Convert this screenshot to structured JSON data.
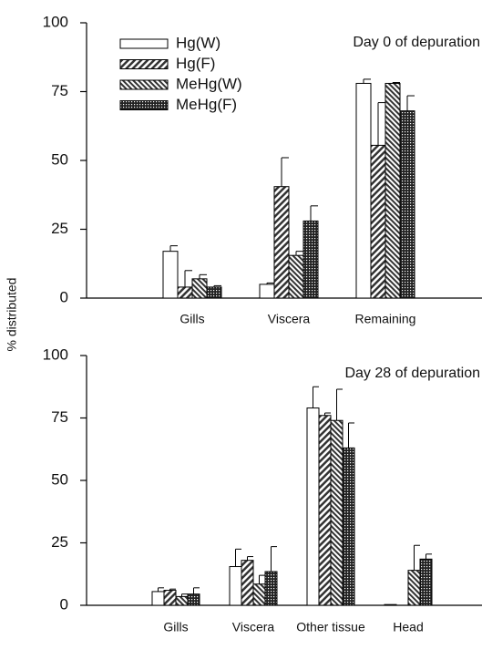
{
  "chart_data": [
    {
      "type": "bar",
      "ylabel": "% distributed",
      "title": "Day 0 of depuration",
      "categories": [
        "Gills",
        "Viscera",
        "Remaining"
      ],
      "series": [
        {
          "name": "Hg(W)",
          "color": "#ffffff",
          "pattern": "none",
          "values": [
            17,
            5,
            78
          ],
          "errors": [
            2,
            0.5,
            1.5
          ]
        },
        {
          "name": "Hg(F)",
          "color": "#333333",
          "pattern": "forward",
          "values": [
            4,
            40.5,
            55.5
          ],
          "errors": [
            6,
            10.5,
            15.5
          ]
        },
        {
          "name": "MeHg(W)",
          "color": "#333333",
          "pattern": "backward",
          "values": [
            7,
            15.5,
            78
          ],
          "errors": [
            1.5,
            1.5,
            0.3
          ]
        },
        {
          "name": "MeHg(F)",
          "color": "#333333",
          "pattern": "cross",
          "values": [
            4,
            28,
            68
          ],
          "errors": [
            0.5,
            5.5,
            5.5
          ]
        }
      ],
      "ylim": [
        0,
        100
      ],
      "yticks": [
        0,
        25,
        50,
        75,
        100
      ],
      "legend": "upper left"
    },
    {
      "type": "bar",
      "title": "Day 28 of depuration",
      "categories": [
        "Gills",
        "Viscera",
        "Other tissue",
        "Head"
      ],
      "series": [
        {
          "name": "Hg(W)",
          "color": "#ffffff",
          "pattern": "none",
          "values": [
            5.5,
            15.5,
            79,
            0.3
          ],
          "errors": [
            1.5,
            7,
            8.5,
            0
          ]
        },
        {
          "name": "Hg(F)",
          "color": "#333333",
          "pattern": "forward",
          "values": [
            6,
            18,
            76,
            null
          ],
          "errors": [
            0.5,
            1.5,
            1,
            null
          ]
        },
        {
          "name": "MeHg(W)",
          "color": "#333333",
          "pattern": "backward",
          "values": [
            3.5,
            8.5,
            74,
            14
          ],
          "errors": [
            1,
            3.5,
            12.5,
            10
          ]
        },
        {
          "name": "MeHg(F)",
          "color": "#333333",
          "pattern": "cross",
          "values": [
            4.5,
            13.5,
            63,
            18.5
          ],
          "errors": [
            2.5,
            10,
            10,
            2
          ]
        }
      ],
      "ylim": [
        0,
        100
      ],
      "yticks": [
        0,
        25,
        50,
        75,
        100
      ],
      "legend": "none"
    }
  ]
}
